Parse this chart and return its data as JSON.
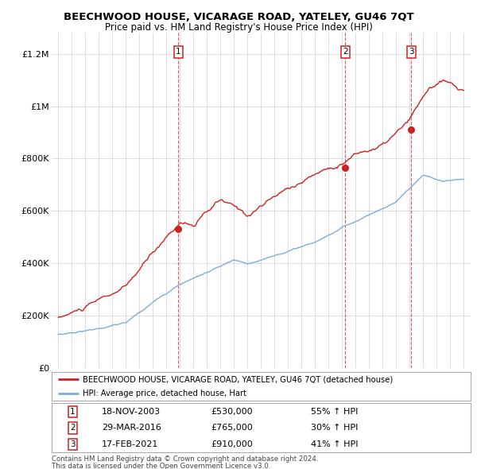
{
  "title": "BEECHWOOD HOUSE, VICARAGE ROAD, YATELEY, GU46 7QT",
  "subtitle": "Price paid vs. HM Land Registry's House Price Index (HPI)",
  "ylabel_ticks": [
    0,
    200000,
    400000,
    600000,
    800000,
    1000000,
    1200000
  ],
  "ylabel_labels": [
    "£0",
    "£200K",
    "£400K",
    "£600K",
    "£800K",
    "£1M",
    "£1.2M"
  ],
  "xlim": [
    1994.5,
    2025.5
  ],
  "ylim": [
    0,
    1280000
  ],
  "red_line_color": "#cc2222",
  "blue_line_color": "#7aaddc",
  "sale_marker_color": "#cc2222",
  "sales": [
    {
      "num": 1,
      "year_x": 2003.89,
      "price": 530000,
      "label": "18-NOV-2003",
      "price_str": "£530,000",
      "hpi_str": "55% ↑ HPI"
    },
    {
      "num": 2,
      "year_x": 2016.24,
      "price": 765000,
      "label": "29-MAR-2016",
      "price_str": "£765,000",
      "hpi_str": "30% ↑ HPI"
    },
    {
      "num": 3,
      "year_x": 2021.12,
      "price": 910000,
      "label": "17-FEB-2021",
      "price_str": "£910,000",
      "hpi_str": "41% ↑ HPI"
    }
  ],
  "legend_property": "BEECHWOOD HOUSE, VICARAGE ROAD, YATELEY, GU46 7QT (detached house)",
  "legend_hpi": "HPI: Average price, detached house, Hart",
  "footer1": "Contains HM Land Registry data © Crown copyright and database right 2024.",
  "footer2": "This data is licensed under the Open Government Licence v3.0.",
  "year_start": 1995,
  "year_end": 2025
}
